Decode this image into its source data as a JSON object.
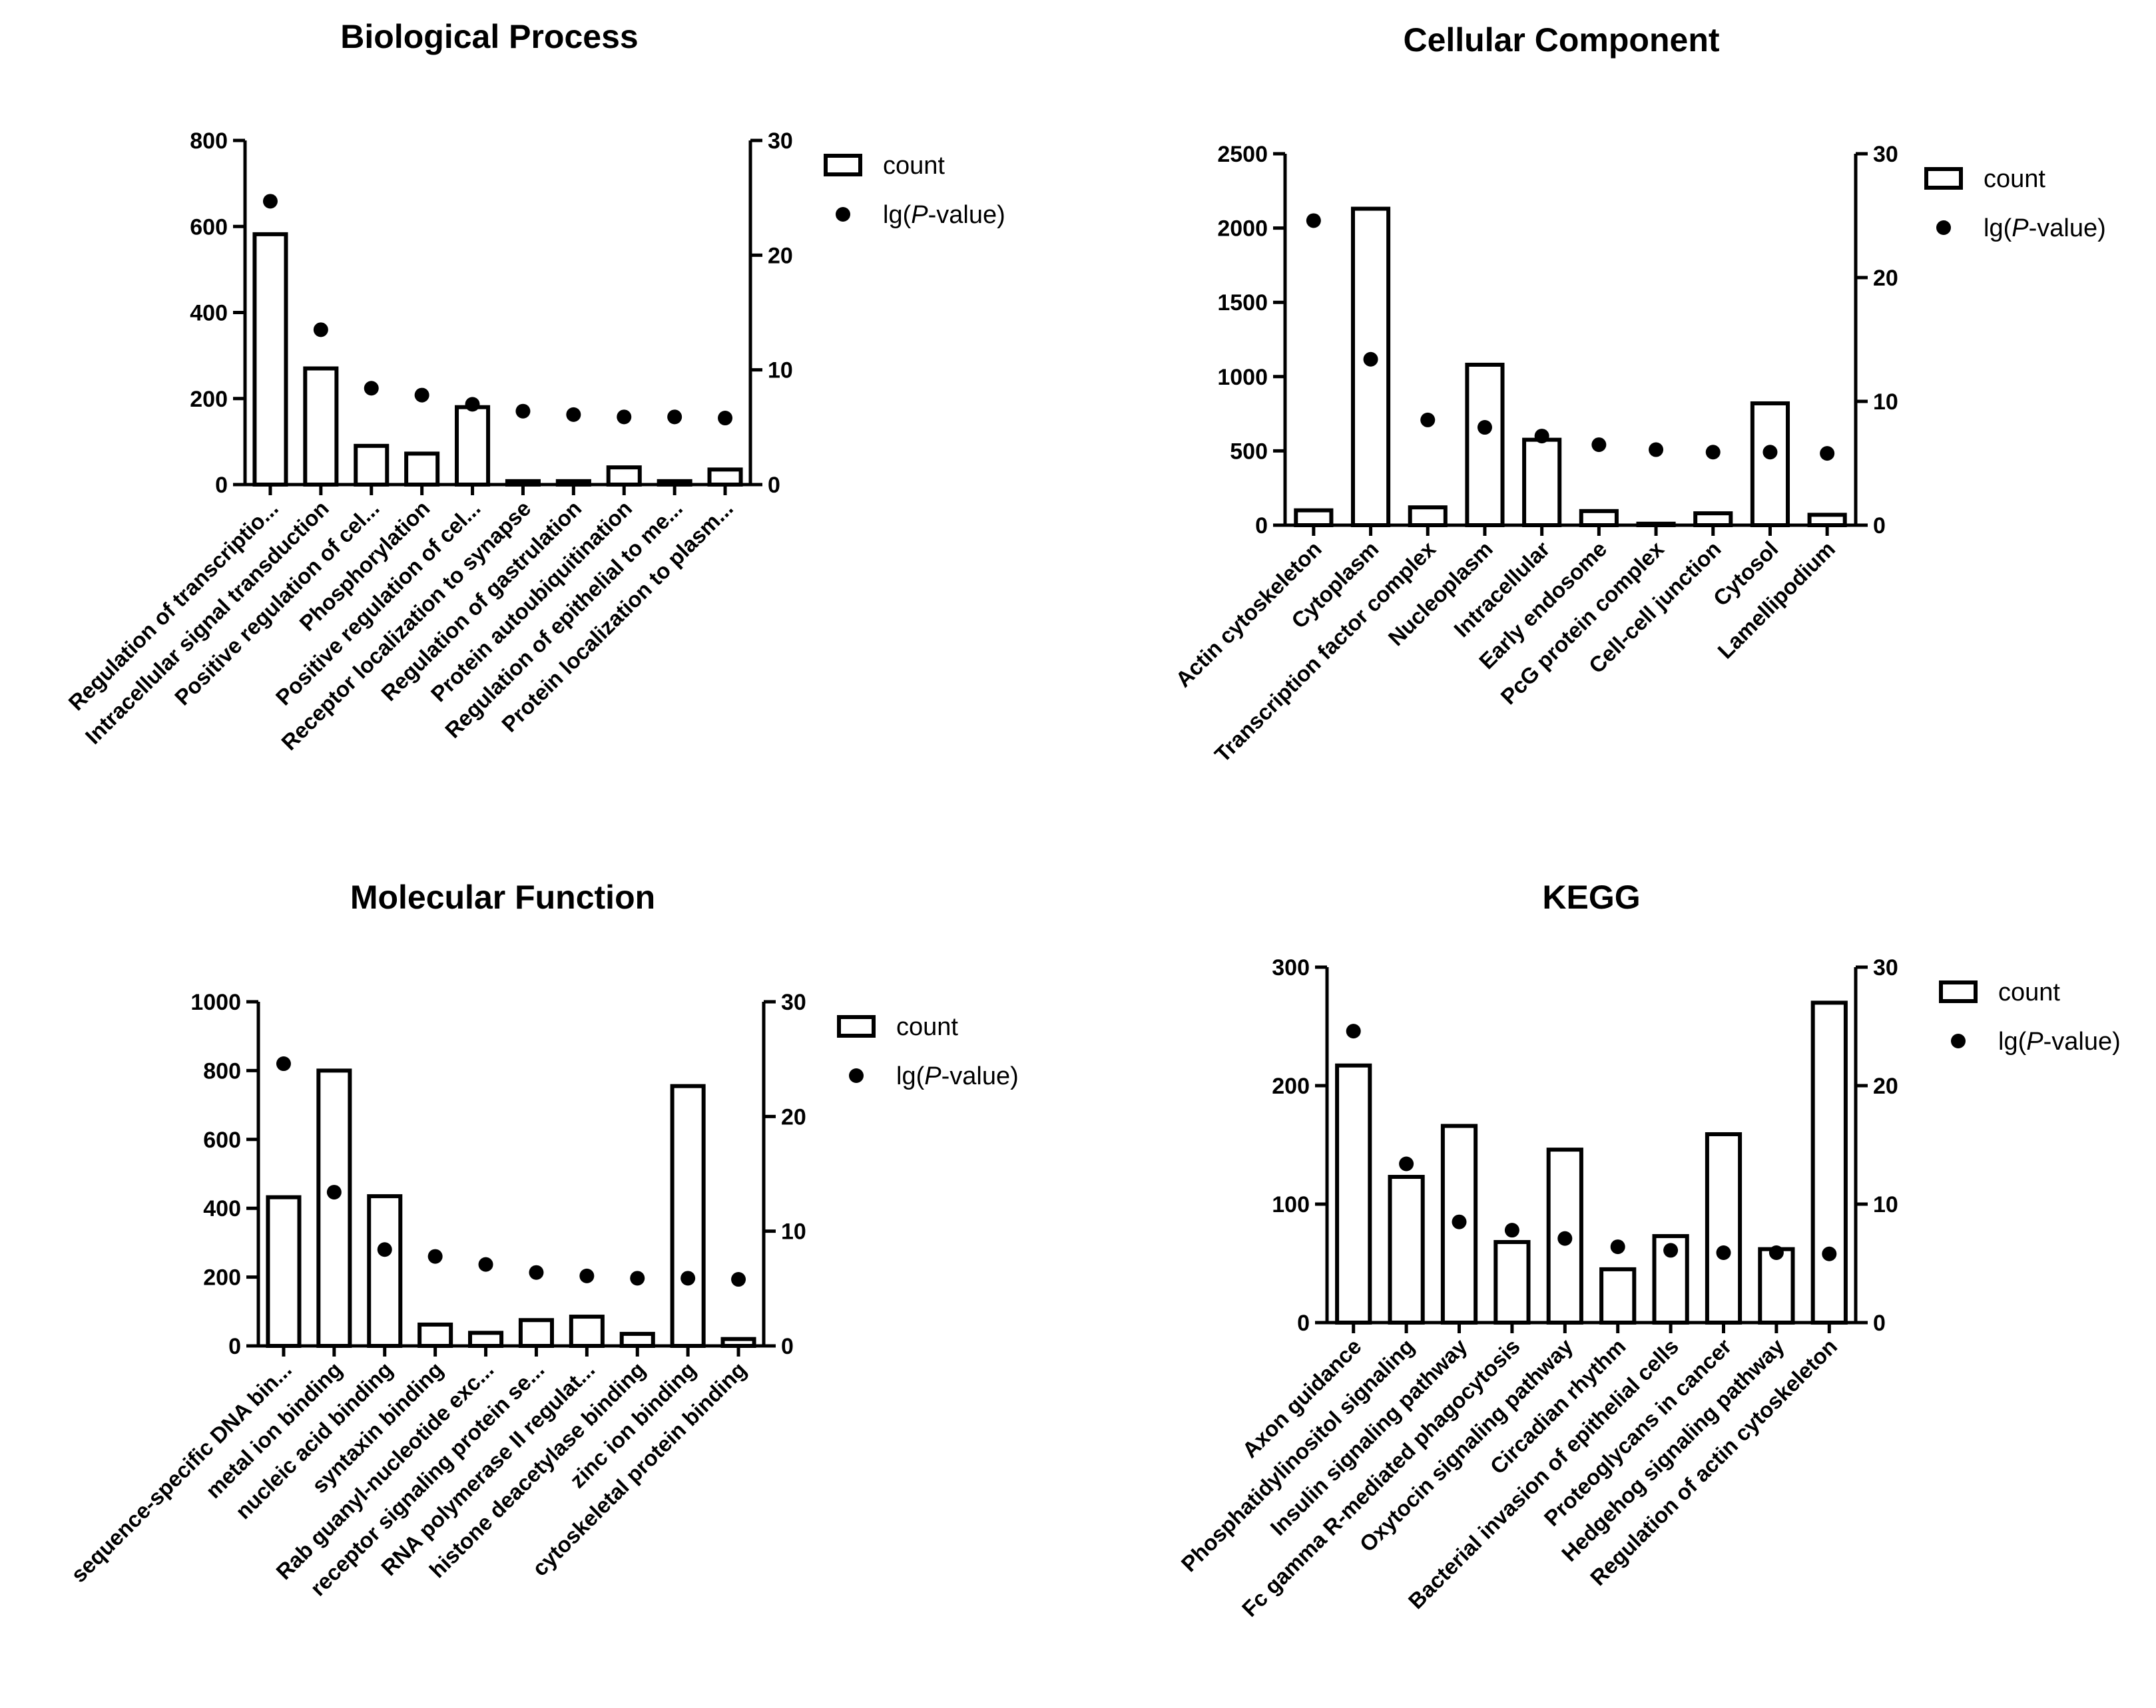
{
  "chart_data": [
    {
      "type": "bar",
      "title": "Biological Process",
      "categories": [
        "Regulation of transcriptio...",
        "Intracellular signal transduction",
        "Positive regulation of cel...",
        "Phosphorylation",
        "Positive regulation of cel...",
        "Receptor localization to synapse",
        "Regulation of gastrulation",
        "Protein autoubiquitination",
        "Regulation of epithelial to me...",
        "Protein localization to plasm..."
      ],
      "series": [
        {
          "name": "count",
          "axis": "left",
          "style": "bar",
          "values": [
            582,
            270,
            90,
            72,
            180,
            8,
            8,
            40,
            8,
            35
          ]
        },
        {
          "name": "lg(P-value)",
          "axis": "right",
          "style": "scatter",
          "values": [
            24.7,
            13.5,
            8.4,
            7.8,
            7.0,
            6.4,
            6.1,
            5.9,
            5.9,
            5.8
          ]
        }
      ],
      "legend": {
        "count": "count",
        "pvalue_prefix": "lg(",
        "pvalue_italic": "P",
        "pvalue_suffix": "-value)"
      },
      "ylim_left": [
        0,
        800
      ],
      "yticks_left": [
        0,
        200,
        400,
        600,
        800
      ],
      "ylim_right": [
        0,
        30
      ],
      "yticks_right": [
        0,
        10,
        20,
        30
      ],
      "legend_position": "top-right"
    },
    {
      "type": "bar",
      "title": "Cellular Component",
      "categories": [
        "Actin cytoskeleton",
        "Cytoplasm",
        "Transcription factor complex",
        "Nucleoplasm",
        "Intracellular",
        "Early endosome",
        "PcG protein complex",
        "Cell-cell junction",
        "Cytosol",
        "Lamellipodium"
      ],
      "series": [
        {
          "name": "count",
          "axis": "left",
          "style": "bar",
          "values": [
            100,
            2130,
            120,
            1080,
            575,
            95,
            10,
            80,
            820,
            70
          ]
        },
        {
          "name": "lg(P-value)",
          "axis": "right",
          "style": "scatter",
          "values": [
            24.6,
            13.4,
            8.5,
            7.9,
            7.2,
            6.5,
            6.1,
            5.9,
            5.9,
            5.8
          ]
        }
      ],
      "legend": {
        "count": "count",
        "pvalue_prefix": "lg(",
        "pvalue_italic": "P",
        "pvalue_suffix": "-value)"
      },
      "ylim_left": [
        0,
        2500
      ],
      "yticks_left": [
        0,
        500,
        1000,
        1500,
        2000,
        2500
      ],
      "ylim_right": [
        0,
        30
      ],
      "yticks_right": [
        0,
        10,
        20,
        30
      ],
      "legend_position": "top-right"
    },
    {
      "type": "bar",
      "title": "Molecular Function",
      "categories": [
        "sequence-specific DNA bin...",
        "metal ion binding",
        "nucleic acid binding",
        "syntaxin binding",
        "Rab guanyl-nucleotide exc...",
        "receptor signaling protein se...",
        "RNA polymerase II regulat...",
        "histone deacetylase binding",
        "zinc ion binding",
        "cytoskeletal protein binding"
      ],
      "series": [
        {
          "name": "count",
          "axis": "left",
          "style": "bar",
          "values": [
            432,
            800,
            435,
            62,
            38,
            75,
            85,
            35,
            755,
            20
          ]
        },
        {
          "name": "lg(P-value)",
          "axis": "right",
          "style": "scatter",
          "values": [
            24.6,
            13.4,
            8.4,
            7.8,
            7.1,
            6.4,
            6.1,
            5.9,
            5.9,
            5.8
          ]
        }
      ],
      "legend": {
        "count": "count",
        "pvalue_prefix": "lg(",
        "pvalue_italic": "P",
        "pvalue_suffix": "-value)"
      },
      "ylim_left": [
        0,
        1000
      ],
      "yticks_left": [
        0,
        200,
        400,
        600,
        800,
        1000
      ],
      "ylim_right": [
        0,
        30
      ],
      "yticks_right": [
        0,
        10,
        20,
        30
      ],
      "legend_position": "top-right"
    },
    {
      "type": "bar",
      "title": "KEGG",
      "categories": [
        "Axon guidance",
        "Phosphatidylinositol signaling",
        "Insulin signaling pathway",
        "Fc gamma R-mediated phagocytosis",
        "Oxytocin signaling pathway",
        "Circadian rhythm",
        "Bacterial invasion of epithelial cells",
        "Proteoglycans in cancer",
        "Hedgehog signaling pathway",
        "Regulation of actin cytoskeleton"
      ],
      "series": [
        {
          "name": "count",
          "axis": "left",
          "style": "bar",
          "values": [
            217,
            123,
            166,
            68,
            146,
            45,
            73,
            159,
            62,
            270
          ]
        },
        {
          "name": "lg(P-value)",
          "axis": "right",
          "style": "scatter",
          "values": [
            24.6,
            13.4,
            8.5,
            7.8,
            7.1,
            6.4,
            6.1,
            5.9,
            5.9,
            5.8
          ]
        }
      ],
      "legend": {
        "count": "count",
        "pvalue_prefix": "lg(",
        "pvalue_italic": "P",
        "pvalue_suffix": "-value)"
      },
      "ylim_left": [
        0,
        300
      ],
      "yticks_left": [
        0,
        100,
        200,
        300
      ],
      "ylim_right": [
        0,
        30
      ],
      "yticks_right": [
        0,
        10,
        20,
        30
      ],
      "legend_position": "top-right"
    }
  ]
}
